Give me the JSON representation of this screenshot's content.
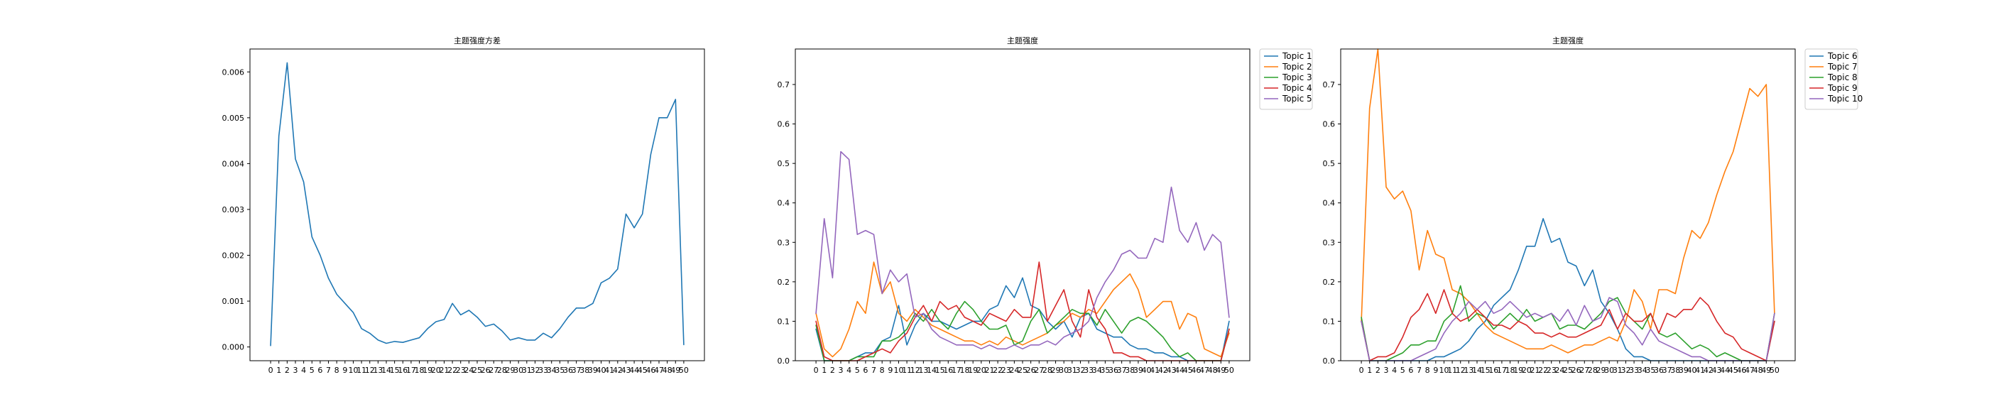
{
  "chart_data": [
    {
      "type": "line",
      "title": "主题强度方差",
      "xlabel": "",
      "ylabel": "",
      "x": [
        0,
        1,
        2,
        3,
        4,
        5,
        6,
        7,
        8,
        9,
        10,
        11,
        12,
        13,
        14,
        15,
        16,
        17,
        18,
        19,
        20,
        21,
        22,
        23,
        24,
        25,
        26,
        27,
        28,
        29,
        30,
        31,
        32,
        33,
        34,
        35,
        36,
        37,
        38,
        39,
        40,
        41,
        42,
        43,
        44,
        45,
        46,
        47,
        48,
        49,
        50
      ],
      "xlim": [
        -2.5,
        52.5
      ],
      "ylim": [
        -0.0003,
        0.0065
      ],
      "yticks": [
        0.0,
        0.001,
        0.002,
        0.003,
        0.004,
        0.005,
        0.006
      ],
      "ytick_labels": [
        "0.000",
        "0.001",
        "0.002",
        "0.003",
        "0.004",
        "0.005",
        "0.006"
      ],
      "grid": false,
      "legend": null,
      "series": [
        {
          "color": "#1f77b4",
          "values": [
            3e-05,
            0.0046,
            0.0062,
            0.0041,
            0.0036,
            0.0024,
            0.002,
            0.0015,
            0.00115,
            0.00095,
            0.00075,
            0.0004,
            0.0003,
            0.00015,
            8e-05,
            0.00012,
            0.0001,
            0.00015,
            0.0002,
            0.0004,
            0.00055,
            0.0006,
            0.00095,
            0.0007,
            0.0008,
            0.00065,
            0.00045,
            0.0005,
            0.00035,
            0.00015,
            0.0002,
            0.00015,
            0.00015,
            0.0003,
            0.0002,
            0.0004,
            0.00065,
            0.00085,
            0.00085,
            0.00095,
            0.0014,
            0.0015,
            0.0017,
            0.0029,
            0.0026,
            0.0029,
            0.0042,
            0.005,
            0.005,
            0.0054,
            5e-05
          ]
        }
      ]
    },
    {
      "type": "line",
      "title": "主题强度",
      "xlabel": "",
      "ylabel": "",
      "x": [
        0,
        1,
        2,
        3,
        4,
        5,
        6,
        7,
        8,
        9,
        10,
        11,
        12,
        13,
        14,
        15,
        16,
        17,
        18,
        19,
        20,
        21,
        22,
        23,
        24,
        25,
        26,
        27,
        28,
        29,
        30,
        31,
        32,
        33,
        34,
        35,
        36,
        37,
        38,
        39,
        40,
        41,
        42,
        43,
        44,
        45,
        46,
        47,
        48,
        49,
        50
      ],
      "xlim": [
        -2.5,
        52.5
      ],
      "ylim": [
        0,
        0.79
      ],
      "yticks": [
        0.0,
        0.1,
        0.2,
        0.3,
        0.4,
        0.5,
        0.6,
        0.7
      ],
      "ytick_labels": [
        "0.0",
        "0.1",
        "0.2",
        "0.3",
        "0.4",
        "0.5",
        "0.6",
        "0.7"
      ],
      "grid": false,
      "legend": "outside-top-right",
      "series": [
        {
          "name": "Topic 1",
          "color": "#1f77b4",
          "values": [
            0.08,
            0.0,
            0.0,
            0.0,
            0.0,
            0.01,
            0.02,
            0.02,
            0.05,
            0.06,
            0.14,
            0.04,
            0.09,
            0.12,
            0.1,
            0.1,
            0.09,
            0.08,
            0.09,
            0.1,
            0.1,
            0.13,
            0.14,
            0.19,
            0.16,
            0.21,
            0.14,
            0.13,
            0.1,
            0.08,
            0.1,
            0.06,
            0.11,
            0.12,
            0.08,
            0.07,
            0.06,
            0.06,
            0.04,
            0.03,
            0.03,
            0.02,
            0.02,
            0.01,
            0.01,
            0.0,
            0.0,
            0.0,
            0.0,
            0.0,
            0.1
          ]
        },
        {
          "name": "Topic 2",
          "color": "#ff7f0e",
          "values": [
            0.12,
            0.03,
            0.01,
            0.03,
            0.08,
            0.15,
            0.12,
            0.25,
            0.17,
            0.2,
            0.12,
            0.1,
            0.13,
            0.11,
            0.09,
            0.08,
            0.07,
            0.06,
            0.05,
            0.05,
            0.04,
            0.05,
            0.04,
            0.06,
            0.05,
            0.04,
            0.05,
            0.06,
            0.07,
            0.09,
            0.1,
            0.12,
            0.11,
            0.13,
            0.12,
            0.15,
            0.18,
            0.2,
            0.22,
            0.18,
            0.11,
            0.13,
            0.15,
            0.15,
            0.08,
            0.12,
            0.11,
            0.03,
            0.02,
            0.01,
            0.07
          ]
        },
        {
          "name": "Topic 3",
          "color": "#2ca02c",
          "values": [
            0.09,
            0.0,
            0.0,
            0.0,
            0.0,
            0.01,
            0.01,
            0.01,
            0.05,
            0.05,
            0.06,
            0.08,
            0.12,
            0.1,
            0.13,
            0.1,
            0.08,
            0.12,
            0.15,
            0.13,
            0.1,
            0.08,
            0.08,
            0.09,
            0.04,
            0.05,
            0.1,
            0.13,
            0.07,
            0.09,
            0.11,
            0.13,
            0.12,
            0.12,
            0.09,
            0.13,
            0.1,
            0.07,
            0.1,
            0.11,
            0.1,
            0.08,
            0.06,
            0.03,
            0.01,
            0.02,
            0.0,
            0.0,
            0.0,
            0.0,
            0.08
          ]
        },
        {
          "name": "Topic 4",
          "color": "#d62728",
          "values": [
            0.1,
            0.01,
            0.0,
            0.0,
            0.0,
            0.0,
            0.01,
            0.02,
            0.03,
            0.02,
            0.05,
            0.07,
            0.11,
            0.14,
            0.1,
            0.15,
            0.13,
            0.14,
            0.11,
            0.1,
            0.09,
            0.12,
            0.11,
            0.1,
            0.13,
            0.11,
            0.11,
            0.25,
            0.1,
            0.14,
            0.18,
            0.1,
            0.06,
            0.18,
            0.11,
            0.08,
            0.02,
            0.02,
            0.01,
            0.01,
            0.0,
            0.0,
            0.0,
            0.0,
            0.0,
            0.0,
            0.0,
            0.0,
            0.0,
            0.0,
            0.08
          ]
        },
        {
          "name": "Topic 5",
          "color": "#9467bd",
          "values": [
            0.12,
            0.36,
            0.21,
            0.53,
            0.51,
            0.32,
            0.33,
            0.32,
            0.17,
            0.23,
            0.2,
            0.22,
            0.11,
            0.12,
            0.08,
            0.06,
            0.05,
            0.04,
            0.04,
            0.04,
            0.03,
            0.04,
            0.03,
            0.03,
            0.04,
            0.03,
            0.04,
            0.04,
            0.05,
            0.04,
            0.06,
            0.07,
            0.08,
            0.1,
            0.16,
            0.2,
            0.23,
            0.27,
            0.28,
            0.26,
            0.26,
            0.31,
            0.3,
            0.44,
            0.33,
            0.3,
            0.35,
            0.28,
            0.32,
            0.3,
            0.11
          ]
        }
      ]
    },
    {
      "type": "line",
      "title": "主题强度",
      "xlabel": "",
      "ylabel": "",
      "x": [
        0,
        1,
        2,
        3,
        4,
        5,
        6,
        7,
        8,
        9,
        10,
        11,
        12,
        13,
        14,
        15,
        16,
        17,
        18,
        19,
        20,
        21,
        22,
        23,
        24,
        25,
        26,
        27,
        28,
        29,
        30,
        31,
        32,
        33,
        34,
        35,
        36,
        37,
        38,
        39,
        40,
        41,
        42,
        43,
        44,
        45,
        46,
        47,
        48,
        49,
        50
      ],
      "xlim": [
        -2.5,
        52.5
      ],
      "ylim": [
        0,
        0.79
      ],
      "yticks": [
        0.0,
        0.1,
        0.2,
        0.3,
        0.4,
        0.5,
        0.6,
        0.7
      ],
      "ytick_labels": [
        "0.0",
        "0.1",
        "0.2",
        "0.3",
        "0.4",
        "0.5",
        "0.6",
        "0.7"
      ],
      "grid": false,
      "legend": "outside-top-right",
      "series": [
        {
          "name": "Topic 6",
          "color": "#1f77b4",
          "values": [
            0.1,
            0.0,
            0.0,
            0.0,
            0.0,
            0.0,
            0.0,
            0.0,
            0.0,
            0.01,
            0.01,
            0.02,
            0.03,
            0.05,
            0.08,
            0.1,
            0.14,
            0.16,
            0.18,
            0.23,
            0.29,
            0.29,
            0.36,
            0.3,
            0.31,
            0.25,
            0.24,
            0.19,
            0.23,
            0.15,
            0.12,
            0.08,
            0.03,
            0.01,
            0.01,
            0.0,
            0.0,
            0.0,
            0.0,
            0.0,
            0.0,
            0.0,
            0.0,
            0.0,
            0.0,
            0.0,
            0.0,
            0.0,
            0.0,
            0.0,
            0.1
          ]
        },
        {
          "name": "Topic 7",
          "color": "#ff7f0e",
          "values": [
            0.1,
            0.64,
            0.79,
            0.44,
            0.41,
            0.43,
            0.38,
            0.23,
            0.33,
            0.27,
            0.26,
            0.18,
            0.17,
            0.15,
            0.12,
            0.09,
            0.07,
            0.06,
            0.05,
            0.04,
            0.03,
            0.03,
            0.03,
            0.04,
            0.03,
            0.02,
            0.03,
            0.04,
            0.04,
            0.05,
            0.06,
            0.05,
            0.1,
            0.18,
            0.15,
            0.08,
            0.18,
            0.18,
            0.17,
            0.26,
            0.33,
            0.31,
            0.35,
            0.42,
            0.48,
            0.53,
            0.61,
            0.69,
            0.67,
            0.7,
            0.12
          ]
        },
        {
          "name": "Topic 8",
          "color": "#2ca02c",
          "values": [
            0.11,
            0.0,
            0.0,
            0.0,
            0.01,
            0.02,
            0.04,
            0.04,
            0.05,
            0.05,
            0.1,
            0.12,
            0.19,
            0.1,
            0.12,
            0.11,
            0.08,
            0.1,
            0.12,
            0.1,
            0.13,
            0.1,
            0.11,
            0.12,
            0.08,
            0.09,
            0.09,
            0.08,
            0.1,
            0.12,
            0.15,
            0.16,
            0.12,
            0.1,
            0.08,
            0.12,
            0.07,
            0.06,
            0.07,
            0.05,
            0.03,
            0.04,
            0.03,
            0.01,
            0.02,
            0.01,
            0.0,
            0.0,
            0.0,
            0.0,
            0.12
          ]
        },
        {
          "name": "Topic 9",
          "color": "#d62728",
          "values": [
            0.1,
            0.0,
            0.01,
            0.01,
            0.02,
            0.06,
            0.11,
            0.13,
            0.17,
            0.12,
            0.18,
            0.12,
            0.1,
            0.11,
            0.13,
            0.11,
            0.09,
            0.09,
            0.08,
            0.1,
            0.09,
            0.07,
            0.07,
            0.06,
            0.07,
            0.06,
            0.06,
            0.07,
            0.08,
            0.09,
            0.13,
            0.08,
            0.12,
            0.1,
            0.1,
            0.12,
            0.07,
            0.12,
            0.11,
            0.13,
            0.13,
            0.16,
            0.14,
            0.1,
            0.07,
            0.06,
            0.03,
            0.02,
            0.01,
            0.0,
            0.1
          ]
        },
        {
          "name": "Topic 10",
          "color": "#9467bd",
          "values": [
            0.1,
            0.0,
            0.0,
            0.0,
            0.0,
            0.0,
            0.0,
            0.01,
            0.02,
            0.03,
            0.07,
            0.1,
            0.12,
            0.15,
            0.13,
            0.15,
            0.12,
            0.13,
            0.15,
            0.13,
            0.11,
            0.12,
            0.11,
            0.12,
            0.1,
            0.13,
            0.09,
            0.14,
            0.1,
            0.11,
            0.16,
            0.15,
            0.09,
            0.07,
            0.04,
            0.08,
            0.05,
            0.04,
            0.03,
            0.02,
            0.01,
            0.01,
            0.0,
            0.0,
            0.0,
            0.0,
            0.0,
            0.0,
            0.0,
            0.0,
            0.12
          ]
        }
      ]
    }
  ]
}
